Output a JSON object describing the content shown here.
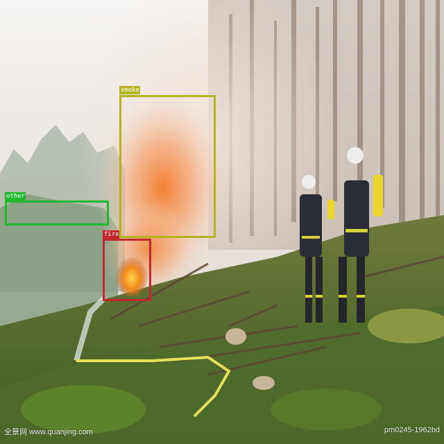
{
  "detections": [
    {
      "label": "smoke",
      "color": "#b6b41e"
    },
    {
      "label": "other",
      "color": "#1fb82c"
    },
    {
      "label": "fire",
      "color": "#c1272d"
    }
  ],
  "watermark_left": "全景网  www.quanjing.com",
  "watermark_right": "pm0245-1962bd"
}
